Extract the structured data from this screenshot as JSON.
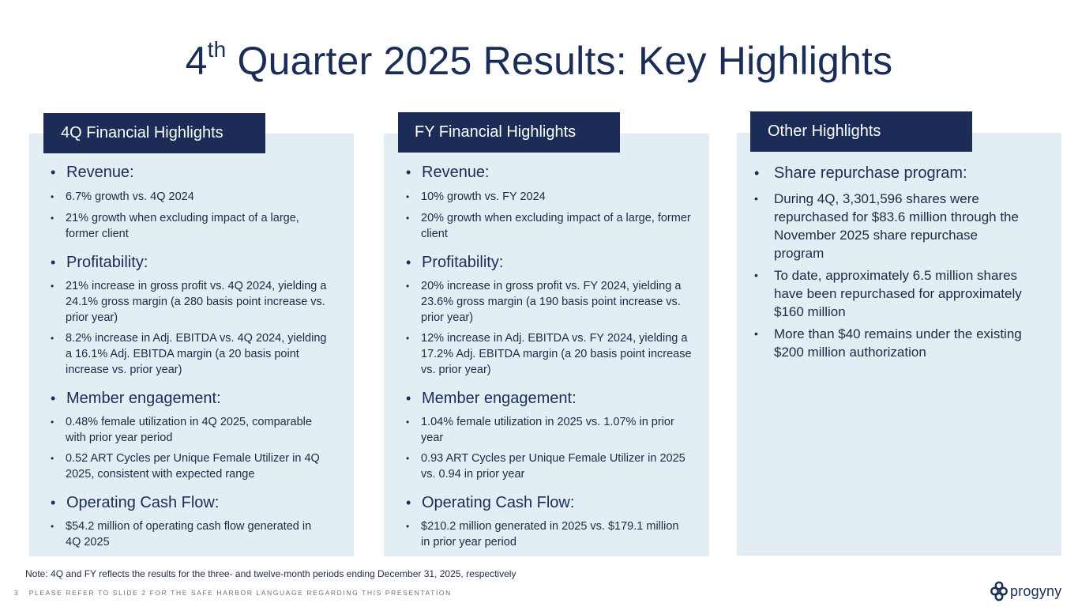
{
  "title": {
    "prefix": "4",
    "superscript": "th",
    "rest": " Quarter 2025 Results: Key Highlights"
  },
  "panels": [
    {
      "tab": "4Q Financial Highlights",
      "sections": [
        {
          "heading": "Revenue:",
          "bullets": [
            "6.7% growth vs. 4Q 2024",
            "21% growth when excluding impact of a large, former client"
          ]
        },
        {
          "heading": "Profitability:",
          "bullets": [
            "21% increase in gross profit vs. 4Q 2024, yielding a 24.1% gross margin (a 280 basis point increase vs. prior year)",
            "8.2% increase in Adj. EBITDA vs. 4Q 2024, yielding a 16.1% Adj. EBITDA margin (a 20 basis point increase vs. prior year)"
          ]
        },
        {
          "heading": "Member engagement:",
          "bullets": [
            "0.48% female utilization in 4Q 2025, comparable with prior year period",
            "0.52 ART Cycles per Unique Female Utilizer in 4Q 2025, consistent with expected range"
          ]
        },
        {
          "heading": "Operating Cash Flow:",
          "bullets": [
            "$54.2 million of operating cash flow generated in 4Q 2025"
          ]
        }
      ]
    },
    {
      "tab": "FY Financial Highlights",
      "sections": [
        {
          "heading": "Revenue:",
          "bullets": [
            "10% growth vs. FY 2024",
            "20% growth when excluding impact of a large, former client"
          ]
        },
        {
          "heading": "Profitability:",
          "bullets": [
            "20% increase in gross profit vs. FY 2024, yielding a 23.6% gross margin (a 190 basis point increase vs. prior year)",
            "12% increase in Adj. EBITDA vs. FY 2024, yielding a 17.2% Adj. EBITDA margin (a 20 basis point increase vs. prior year)"
          ]
        },
        {
          "heading": "Member engagement:",
          "bullets": [
            "1.04% female utilization in 2025 vs. 1.07% in prior year",
            "0.93 ART Cycles per Unique Female Utilizer in 2025 vs. 0.94 in prior year"
          ]
        },
        {
          "heading": "Operating Cash Flow:",
          "bullets": [
            "$210.2 million generated in 2025 vs. $179.1 million in prior year period"
          ]
        }
      ]
    },
    {
      "tab": "Other Highlights",
      "sections": [
        {
          "heading": "Share repurchase program:",
          "bullets": [
            "During 4Q, 3,301,596 shares were repurchased for $83.6 million through the November 2025 share repurchase program",
            "To date, approximately 6.5 million shares have been repurchased for approximately $160 million",
            "More than $40 remains under the existing $200 million authorization"
          ]
        }
      ]
    }
  ],
  "note": "Note: 4Q and FY reflects the results for the three- and twelve-month periods ending December 31, 2025, respectively",
  "footer": {
    "page_number": "3",
    "disclaimer": "PLEASE REFER TO SLIDE 2 FOR THE SAFE HARBOR LANGUAGE REGARDING THIS PRESENTATION"
  },
  "logo": {
    "text": "progyny",
    "icon": "progyny-logo-icon"
  },
  "colors": {
    "navy": "#1b2d57",
    "panel_bg": "#e2edf4",
    "text": "#1f2a44"
  }
}
